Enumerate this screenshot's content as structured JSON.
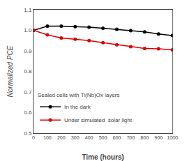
{
  "chart_data": {
    "type": "line",
    "x_label": "Time (hours)",
    "y_label": "Normalized PCE",
    "legend_title": "Sealed cells with Ti(Nb)Ox layers",
    "legend": "lower left",
    "grid": false,
    "marker": "circle",
    "line_style": "solid",
    "x": [
      0,
      100,
      200,
      300,
      400,
      500,
      600,
      700,
      800,
      900,
      1000
    ],
    "series": [
      {
        "name": "In the dark",
        "color": "#000000",
        "values": [
          1.0,
          1.02,
          1.02,
          1.018,
          1.015,
          1.01,
          1.005,
          0.998,
          0.992,
          0.982,
          0.975
        ]
      },
      {
        "name": "Under simulated  solar light",
        "color": "#dd0000",
        "values": [
          1.0,
          0.978,
          0.963,
          0.957,
          0.95,
          0.94,
          0.93,
          0.92,
          0.912,
          0.91,
          0.905
        ]
      }
    ],
    "xlim": [
      0,
      1000
    ],
    "ylim": [
      0.5,
      1.1
    ],
    "xticks": [
      0,
      100,
      200,
      300,
      400,
      500,
      600,
      700,
      800,
      900,
      1000
    ],
    "yticks": [
      0.5,
      0.6,
      0.7,
      0.8,
      0.9,
      {
        "value": 1.0,
        "label": "1.0"
      },
      1.1
    ]
  }
}
